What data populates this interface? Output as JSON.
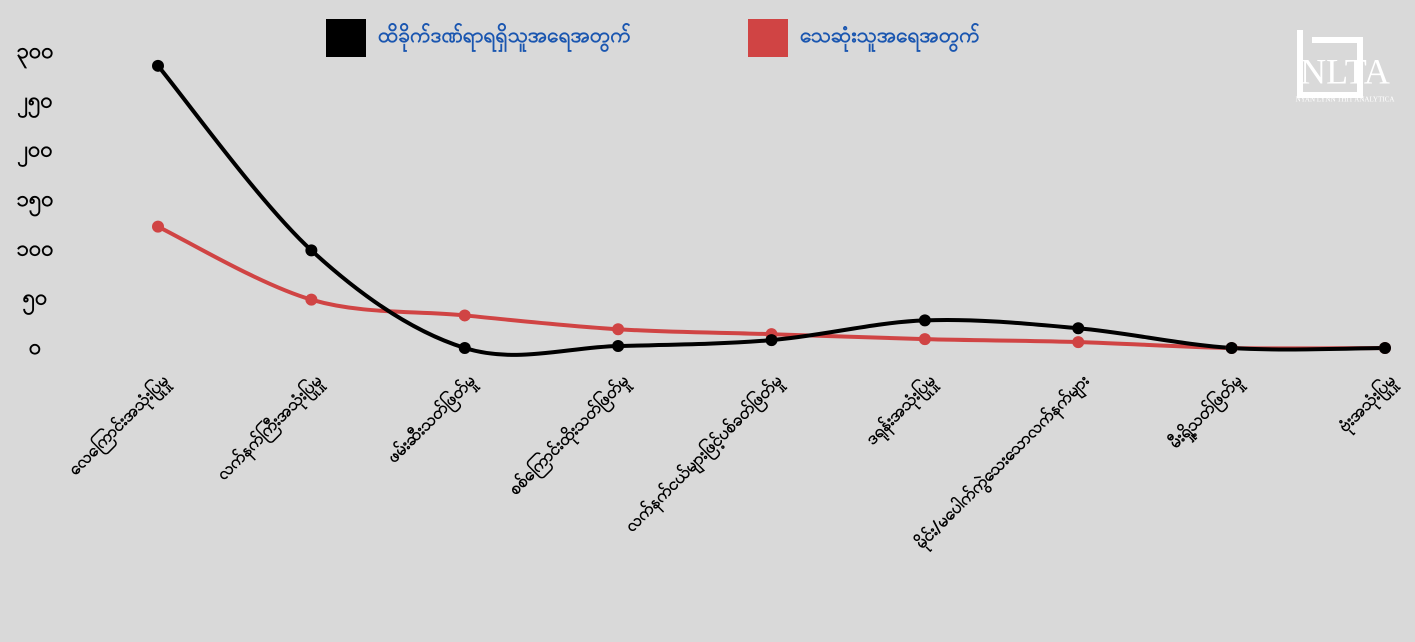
{
  "chart_data": {
    "type": "line",
    "categories": [
      "လေကြောင်းအသုံးပြုမှု",
      "လက်နက်ကြီးအသုံးပြုမှု",
      "ဖမ်းဆီးသတ်ဖြတ်မှု",
      "စစ်ကြောင်းထိုးသတ်ဖြတ်မှု",
      "လက်နက်ငယ်များဖြင့်ပစ်ခတ်ဖြတ်မှု",
      "ဒရုန်းအသုံးပြုမှု",
      "မိုင်း/မပေါက်ကွဲသေးသောလက်နက်များ",
      "မီးရှို့သတ်ဖြတ်မှု",
      "ဗုံးအသုံးပြုမှု"
    ],
    "series": [
      {
        "name": "ထိခိုက်ဒဏ်ရာရရှိသူအရေအတွက်",
        "color": "#000000",
        "values": [
          286,
          99,
          0,
          2,
          8,
          28,
          20,
          0,
          0
        ]
      },
      {
        "name": "သေဆုံးသူအရေအတွက်",
        "color": "#d04444",
        "values": [
          123,
          49,
          33,
          19,
          14,
          9,
          6,
          0,
          0
        ]
      }
    ],
    "ylim": [
      0,
      300
    ],
    "yticks": [
      {
        "value": 0,
        "label": "၀"
      },
      {
        "value": 50,
        "label": "၅၀"
      },
      {
        "value": 100,
        "label": "၁၀၀"
      },
      {
        "value": 150,
        "label": "၁၅၀"
      },
      {
        "value": 200,
        "label": "၂၀၀"
      },
      {
        "value": 250,
        "label": "၂၅၀"
      },
      {
        "value": 300,
        "label": "၃၀၀"
      }
    ],
    "grid": false,
    "legend": "top",
    "logo": {
      "mark": "NLTA",
      "text": "NYAN LYNN THIT ANALYTICA"
    }
  }
}
